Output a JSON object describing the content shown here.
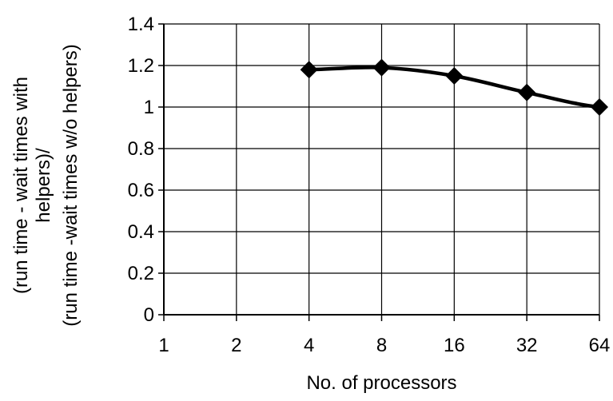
{
  "chart_data": {
    "type": "line",
    "title": "",
    "xlabel": "No. of processors",
    "ylabel_lines": [
      "(run time - wait times with",
      "helpers)/",
      "(run time -wait times w/o helpers)"
    ],
    "categories": [
      "1",
      "2",
      "4",
      "8",
      "16",
      "32",
      "64"
    ],
    "ylim": [
      0,
      1.4
    ],
    "yticks": [
      "0",
      "0.2",
      "0.4",
      "0.6",
      "0.8",
      "1",
      "1.2",
      "1.4"
    ],
    "grid": {
      "horizontal": true,
      "vertical": true
    },
    "legend": "none",
    "series": [
      {
        "marker": "diamond",
        "color": "#000000",
        "x": [
          "4",
          "8",
          "16",
          "32",
          "64"
        ],
        "values": [
          1.18,
          1.19,
          1.15,
          1.07,
          1.0
        ]
      }
    ]
  }
}
